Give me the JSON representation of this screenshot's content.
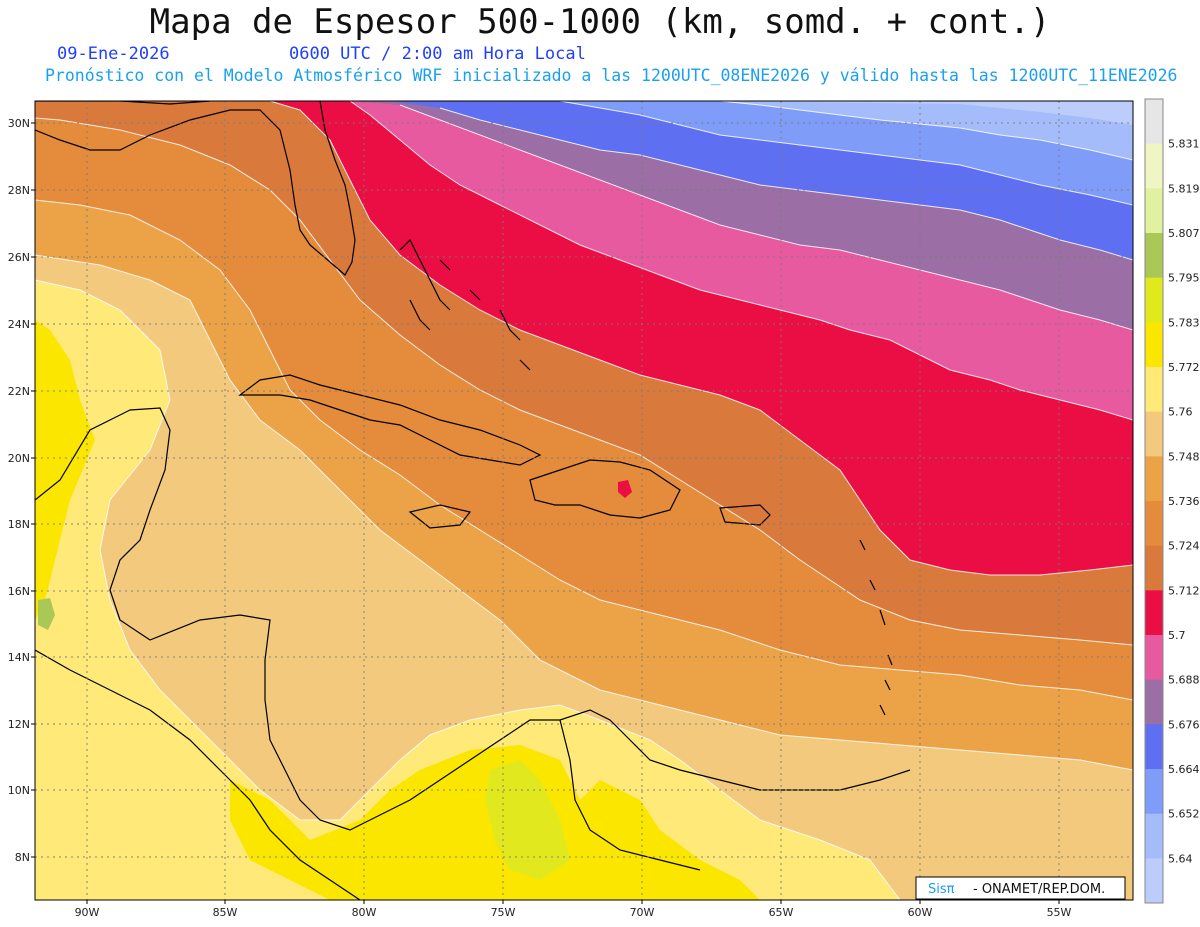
{
  "header": {
    "title": "Mapa de Espesor 500-1000 (km, somd. + cont.)",
    "date": "09-Ene-2026",
    "time": "0600 UTC / 2:00 am Hora Local",
    "info": "Pronóstico con el Modelo Atmosférico WRF inicializado a las 1200UTC_08ENE2026 y válido hasta las  1200UTC_11ENE2026"
  },
  "map": {
    "lon_range": [
      -92,
      -53
    ],
    "lat_range": [
      6.8,
      30.7
    ],
    "lat_labels": [
      "30N",
      "28N",
      "26N",
      "24N",
      "22N",
      "20N",
      "18N",
      "16N",
      "14N",
      "12N",
      "10N",
      "8N"
    ],
    "lon_labels": [
      "90W",
      "85W",
      "80W",
      "75W",
      "70W",
      "65W",
      "60W",
      "55W"
    ],
    "shading_bands": [
      {
        "label": "5.748-5.76",
        "color": "#f2c97d"
      },
      {
        "label": "5.736-5.748",
        "color": "#eca347"
      },
      {
        "label": "5.724-5.736",
        "color": "#e48b3c"
      },
      {
        "label": "5.712-5.724",
        "color": "#d97a3c"
      },
      {
        "label": "5.70-5.712",
        "color": "#ea0e44"
      },
      {
        "label": "5.688-5.70",
        "color": "#e85a9f"
      },
      {
        "label": "5.676-5.688",
        "color": "#9b6ea6"
      },
      {
        "label": "5.664-5.676",
        "color": "#5f6ff2"
      },
      {
        "label": "5.652-5.664",
        "color": "#7f9cf8"
      },
      {
        "label": "5.64-5.652",
        "color": "#a5bcfb"
      },
      {
        "label": "<5.64",
        "color": "#bccdfb"
      }
    ]
  },
  "colorbar": {
    "labels": [
      "5.831",
      "5.819",
      "5.807",
      "5.795",
      "5.783",
      "5.772",
      "5.76",
      "5.748",
      "5.736",
      "5.724",
      "5.712",
      "5.7",
      "5.688",
      "5.676",
      "5.664",
      "5.652",
      "5.64"
    ],
    "colors": [
      "#e6e6e6",
      "#f0f5c4",
      "#e2f1a0",
      "#a9c856",
      "#e1e91e",
      "#fbe600",
      "#fee979",
      "#f2c97d",
      "#eca347",
      "#e48b3c",
      "#d97a3c",
      "#ea0e44",
      "#e85a9f",
      "#9b6ea6",
      "#5f6ff2",
      "#7f9cf8",
      "#a5bcfb",
      "#bccdfb"
    ]
  },
  "credit": {
    "logo": "Sisπ",
    "text": "- ONAMET/REP.DOM."
  }
}
